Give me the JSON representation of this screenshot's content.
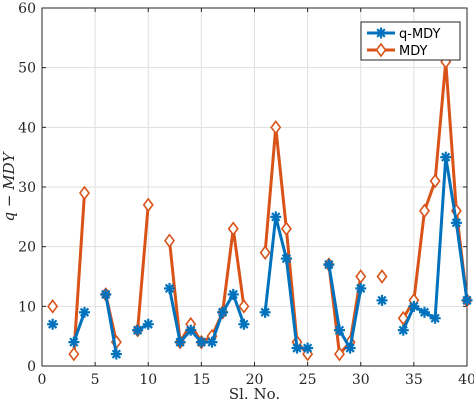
{
  "chart_data": {
    "type": "line",
    "xlabel": "Sl. No.",
    "ylabel": "q − MDY",
    "xlim": [
      0,
      40
    ],
    "ylim": [
      0,
      60
    ],
    "xticks": [
      0,
      5,
      10,
      15,
      20,
      25,
      30,
      35,
      40
    ],
    "yticks": [
      0,
      10,
      20,
      30,
      40,
      50,
      60
    ],
    "xtick_labels": [
      "0",
      "5",
      "10",
      "15",
      "20",
      "25",
      "30",
      "35",
      "40"
    ],
    "ytick_labels": [
      "0",
      "10",
      "20",
      "30",
      "40",
      "50",
      "60"
    ],
    "grid": true,
    "legend_position": "top-right",
    "series": [
      {
        "name": "q-MDY",
        "color": "#0072BD",
        "marker": "asterisk",
        "x": [
          1,
          3,
          4,
          6,
          7,
          9,
          10,
          12,
          13,
          14,
          15,
          16,
          17,
          18,
          19,
          21,
          22,
          23,
          24,
          25,
          27,
          28,
          29,
          30,
          32,
          34,
          35,
          36,
          37,
          38,
          39,
          40
        ],
        "values": [
          7,
          4,
          9,
          12,
          2,
          6,
          7,
          13,
          4,
          6,
          4,
          4,
          9,
          12,
          7,
          9,
          25,
          18,
          3,
          3,
          17,
          6,
          3,
          13,
          11,
          6,
          10,
          9,
          8,
          35,
          24,
          11
        ]
      },
      {
        "name": "MDY",
        "color": "#D95319",
        "marker": "diamond",
        "x": [
          1,
          3,
          4,
          6,
          7,
          9,
          10,
          12,
          13,
          14,
          15,
          16,
          17,
          18,
          19,
          21,
          22,
          23,
          24,
          25,
          27,
          28,
          29,
          30,
          32,
          34,
          35,
          36,
          37,
          38,
          39,
          40
        ],
        "values": [
          10,
          2,
          29,
          12,
          4,
          6,
          27,
          21,
          4,
          7,
          4,
          5,
          9,
          23,
          10,
          19,
          40,
          23,
          4,
          2,
          17,
          2,
          4,
          15,
          15,
          8,
          11,
          26,
          31,
          51,
          26,
          11
        ]
      }
    ]
  }
}
